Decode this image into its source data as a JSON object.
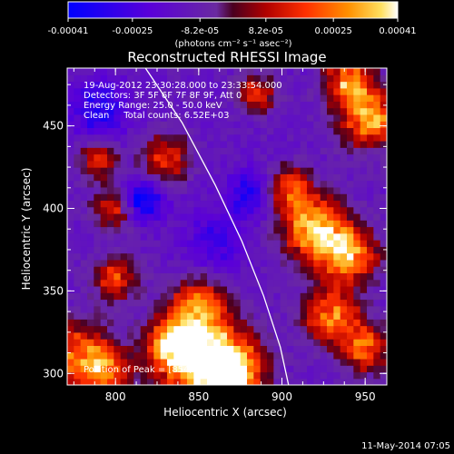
{
  "chart_data": {
    "type": "heatmap",
    "title": "Reconstructed RHESSI Image",
    "xlabel": "Heliocentric X (arcsec)",
    "ylabel": "Heliocentric Y (arcsec)",
    "xlim": [
      771,
      963
    ],
    "ylim": [
      293,
      485
    ],
    "x_ticks": [
      800,
      850,
      900,
      950
    ],
    "y_ticks": [
      300,
      350,
      400,
      450
    ],
    "colorbar": {
      "range": [
        -0.00041,
        0.00041
      ],
      "tick_values": [
        -0.00041,
        -0.00025,
        -8.2e-05,
        8.2e-05,
        0.00025,
        0.00041
      ],
      "tick_labels": [
        "-0.00041",
        "-0.00025",
        "-8.2e-05",
        "8.2e-05",
        "0.00025",
        "0.00041"
      ],
      "unit_label": "(photons cm⁻² s⁻¹ asec⁻²)"
    },
    "annotations": [
      "19-Aug-2012 23:30:28.000 to 23:33:54.000",
      "Detectors: 3F 5F 6F 7F 8F 9F, Att 0",
      "Energy Range: 25.0 - 50.0 keV",
      "Clean     Total counts: 6.52E+03"
    ],
    "peak_label": "Position of Peak = [854,315]",
    "limb_curve": [
      [
        818,
        485
      ],
      [
        840,
        452
      ],
      [
        860,
        414
      ],
      [
        876,
        380
      ],
      [
        889,
        347
      ],
      [
        899,
        316
      ],
      [
        904,
        293
      ]
    ],
    "intensity_features": [
      {
        "x": 855,
        "y": 308,
        "sigma": 18,
        "value": 0.00041
      },
      {
        "x": 835,
        "y": 318,
        "sigma": 11,
        "value": 0.0003
      },
      {
        "x": 870,
        "y": 300,
        "sigma": 12,
        "value": 0.00028
      },
      {
        "x": 778,
        "y": 312,
        "sigma": 14,
        "value": 0.00024
      },
      {
        "x": 795,
        "y": 300,
        "sigma": 10,
        "value": 0.00018
      },
      {
        "x": 850,
        "y": 342,
        "sigma": 11,
        "value": 0.00022
      },
      {
        "x": 800,
        "y": 358,
        "sigma": 9,
        "value": 0.00018
      },
      {
        "x": 920,
        "y": 388,
        "sigma": 13,
        "value": 0.00036
      },
      {
        "x": 940,
        "y": 372,
        "sigma": 12,
        "value": 0.0003
      },
      {
        "x": 905,
        "y": 412,
        "sigma": 9,
        "value": 0.00022
      },
      {
        "x": 952,
        "y": 455,
        "sigma": 12,
        "value": 0.00032
      },
      {
        "x": 940,
        "y": 478,
        "sigma": 10,
        "value": 0.00026
      },
      {
        "x": 930,
        "y": 335,
        "sigma": 12,
        "value": 0.00024
      },
      {
        "x": 950,
        "y": 315,
        "sigma": 10,
        "value": 0.00022
      },
      {
        "x": 885,
        "y": 470,
        "sigma": 8,
        "value": 0.00016
      },
      {
        "x": 800,
        "y": 400,
        "sigma": 9,
        "value": 0.00018
      },
      {
        "x": 830,
        "y": 430,
        "sigma": 10,
        "value": 0.00016
      },
      {
        "x": 790,
        "y": 430,
        "sigma": 8,
        "value": 0.00015
      },
      {
        "x": 815,
        "y": 405,
        "sigma": 9,
        "value": -0.00035
      },
      {
        "x": 790,
        "y": 460,
        "sigma": 12,
        "value": -0.00022
      },
      {
        "x": 880,
        "y": 410,
        "sigma": 10,
        "value": -0.0002
      },
      {
        "x": 860,
        "y": 380,
        "sigma": 13,
        "value": -0.00015
      }
    ]
  },
  "footer": {
    "timestamp": "11-May-2014 07:05"
  }
}
